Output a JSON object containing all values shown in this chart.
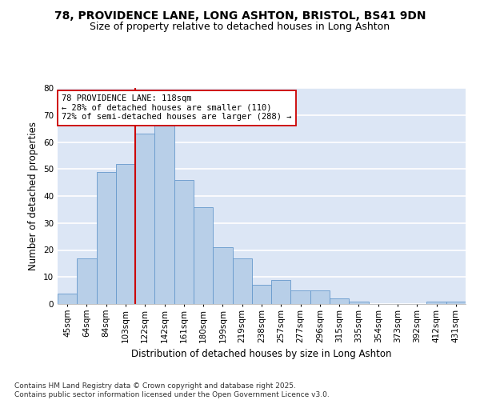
{
  "title_line1": "78, PROVIDENCE LANE, LONG ASHTON, BRISTOL, BS41 9DN",
  "title_line2": "Size of property relative to detached houses in Long Ashton",
  "xlabel": "Distribution of detached houses by size in Long Ashton",
  "ylabel": "Number of detached properties",
  "categories": [
    "45sqm",
    "64sqm",
    "84sqm",
    "103sqm",
    "122sqm",
    "142sqm",
    "161sqm",
    "180sqm",
    "199sqm",
    "219sqm",
    "238sqm",
    "257sqm",
    "277sqm",
    "296sqm",
    "315sqm",
    "335sqm",
    "354sqm",
    "373sqm",
    "392sqm",
    "412sqm",
    "431sqm"
  ],
  "values": [
    4,
    17,
    49,
    52,
    63,
    66,
    46,
    36,
    21,
    17,
    7,
    9,
    5,
    5,
    2,
    1,
    0,
    0,
    0,
    1,
    1
  ],
  "bar_color": "#b8cfe8",
  "bar_edge_color": "#6699cc",
  "vline_color": "#cc0000",
  "annotation_text": "78 PROVIDENCE LANE: 118sqm\n← 28% of detached houses are smaller (110)\n72% of semi-detached houses are larger (288) →",
  "annotation_box_facecolor": "#ffffff",
  "annotation_box_edgecolor": "#cc0000",
  "ylim": [
    0,
    80
  ],
  "yticks": [
    0,
    10,
    20,
    30,
    40,
    50,
    60,
    70,
    80
  ],
  "plot_bg_color": "#dce6f5",
  "fig_bg_color": "#ffffff",
  "grid_color": "#ffffff",
  "footer_text": "Contains HM Land Registry data © Crown copyright and database right 2025.\nContains public sector information licensed under the Open Government Licence v3.0.",
  "title_fontsize": 10,
  "subtitle_fontsize": 9,
  "axis_label_fontsize": 8.5,
  "tick_fontsize": 7.5,
  "annotation_fontsize": 7.5,
  "footer_fontsize": 6.5
}
